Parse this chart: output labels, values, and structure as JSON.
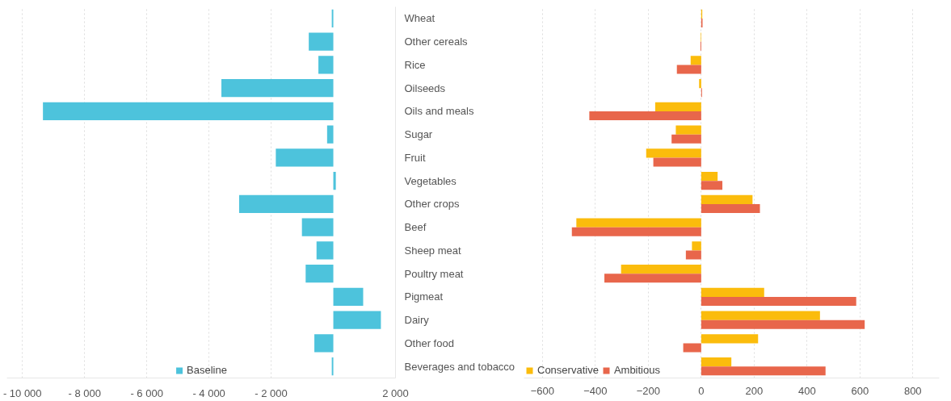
{
  "chart_data": [
    {
      "type": "bar",
      "orientation": "horizontal",
      "categories": [
        "Wheat",
        "Other cereals",
        "Rice",
        "Oilseeds",
        "Oils and meals",
        "Sugar",
        "Fruit",
        "Vegetables",
        "Other crops",
        "Beef",
        "Sheep meat",
        "Poultry meat",
        "Pigmeat",
        "Dairy",
        "Other food",
        "Beverages and tobacco"
      ],
      "series": [
        {
          "name": "Baseline",
          "color": "#4dc3dc",
          "values": [
            -50,
            -790,
            -480,
            -3600,
            -9340,
            -200,
            -1850,
            80,
            -3030,
            -1010,
            -540,
            -890,
            960,
            1530,
            -610,
            -50
          ]
        }
      ],
      "xlim": [
        -10500,
        2000
      ],
      "xticks": [
        {
          "value": -10000,
          "label": "- 10 000"
        },
        {
          "value": -8000,
          "label": "- 8 000"
        },
        {
          "value": -6000,
          "label": "- 6 000"
        },
        {
          "value": -4000,
          "label": "- 4 000"
        },
        {
          "value": -2000,
          "label": "- 2 000"
        },
        {
          "value": 2000,
          "label": "2 000"
        }
      ],
      "grid": "x",
      "legend": "bottom"
    },
    {
      "type": "bar",
      "orientation": "horizontal",
      "categories": [
        null,
        null,
        null,
        null,
        null,
        null,
        null,
        null,
        null,
        null,
        null,
        null,
        null,
        null,
        null,
        null
      ],
      "series": [
        {
          "name": "Conservative",
          "color": "#fbbc0c",
          "values": [
            4,
            -2,
            -40,
            -8,
            -174,
            -96,
            -208,
            62,
            194,
            -472,
            -35,
            -303,
            238,
            449,
            215,
            114
          ]
        },
        {
          "name": "Ambitious",
          "color": "#e8664b",
          "values": [
            5,
            -3,
            -92,
            3,
            -423,
            -112,
            -181,
            80,
            222,
            -489,
            -58,
            -366,
            586,
            618,
            -68,
            470
          ]
        }
      ],
      "xlim": [
        -670,
        900
      ],
      "xticks": [
        -600,
        -400,
        -200,
        0,
        200,
        400,
        600,
        800
      ],
      "tick_labels": "x",
      "grid": "x",
      "legend": "bottom left"
    }
  ]
}
